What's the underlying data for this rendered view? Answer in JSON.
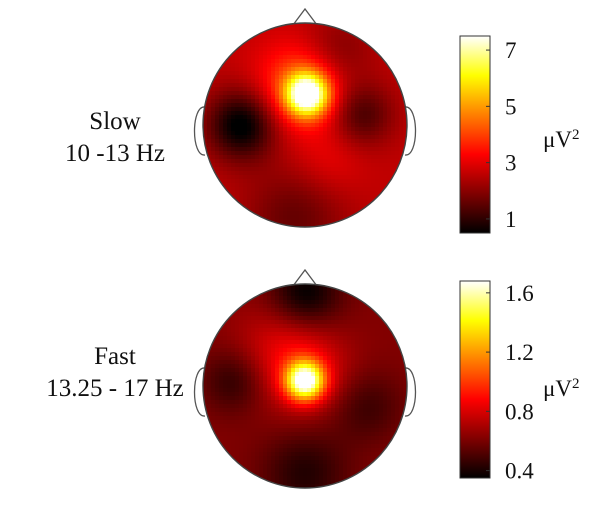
{
  "chart_data": [
    {
      "type": "heatmap",
      "label_lines": [
        "Slow",
        "10 -13 Hz"
      ],
      "unit": "μV",
      "unit_exponent": "2",
      "colorbar": {
        "min": 0.5,
        "max": 7.5,
        "ticks": [
          "7",
          "5",
          "3",
          "1"
        ],
        "tick_values": [
          7,
          5,
          3,
          1
        ]
      },
      "colormap": "hot",
      "topography": {
        "background": 2.6,
        "sources": [
          {
            "x": 0.02,
            "y": 0.3,
            "sigma": 0.14,
            "amp": 4.9
          },
          {
            "x": -0.02,
            "y": 0.38,
            "sigma": 0.3,
            "amp": 1.9
          },
          {
            "x": 0.25,
            "y": -0.35,
            "sigma": 0.25,
            "amp": 0.5
          },
          {
            "x": -0.62,
            "y": 0.0,
            "sigma": 0.24,
            "amp": -2.3
          },
          {
            "x": 0.55,
            "y": 0.1,
            "sigma": 0.22,
            "amp": -1.4
          },
          {
            "x": 0.3,
            "y": 0.7,
            "sigma": 0.25,
            "amp": -0.9
          },
          {
            "x": -0.1,
            "y": -0.9,
            "sigma": 0.35,
            "amp": -1.0
          }
        ]
      }
    },
    {
      "type": "heatmap",
      "label_lines": [
        "Fast",
        "13.25 - 17 Hz"
      ],
      "unit": "μV",
      "unit_exponent": "2",
      "colorbar": {
        "min": 0.35,
        "max": 1.68,
        "ticks": [
          "1.6",
          "1.2",
          "0.8",
          "0.4"
        ],
        "tick_values": [
          1.6,
          1.2,
          0.8,
          0.4
        ]
      },
      "colormap": "hot",
      "topography": {
        "background": 0.62,
        "sources": [
          {
            "x": 0.0,
            "y": 0.05,
            "sigma": 0.13,
            "amp": 1.0
          },
          {
            "x": 0.0,
            "y": 0.15,
            "sigma": 0.3,
            "amp": 0.25
          },
          {
            "x": -0.3,
            "y": 0.45,
            "sigma": 0.3,
            "amp": 0.12
          },
          {
            "x": 0.0,
            "y": 0.9,
            "sigma": 0.25,
            "amp": -0.28
          },
          {
            "x": -0.7,
            "y": 0.05,
            "sigma": 0.22,
            "amp": -0.18
          },
          {
            "x": 0.6,
            "y": -0.2,
            "sigma": 0.25,
            "amp": -0.15
          },
          {
            "x": 0.0,
            "y": -0.85,
            "sigma": 0.3,
            "amp": -0.2
          }
        ]
      }
    }
  ]
}
